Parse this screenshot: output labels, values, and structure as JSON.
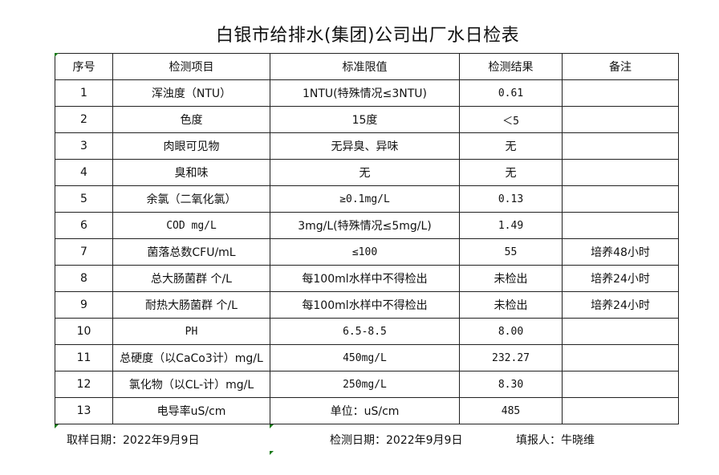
{
  "title": "白银市给排水(集团)公司出厂水日检表",
  "headers": [
    "序号",
    "检测项目",
    "标准限值",
    "检测结果",
    "备注"
  ],
  "rows": [
    [
      "1",
      "浑浊度（NTU）",
      "1NTU(特殊情况≤3NTU)",
      "0.61",
      ""
    ],
    [
      "2",
      "色度",
      "15度",
      "＜5",
      ""
    ],
    [
      "3",
      "肉眼可见物",
      "无异臭、异味",
      "无",
      ""
    ],
    [
      "4",
      "臭和味",
      "无",
      "无",
      ""
    ],
    [
      "5",
      "余氯（二氧化氯）",
      "≥0.1mg/L",
      "0.13",
      ""
    ],
    [
      "6",
      "COD        mg/L",
      "3mg/L(特殊情况≤5mg/L)",
      "1.49",
      ""
    ],
    [
      "7",
      "菌落总数CFU/mL",
      "≤100",
      "55",
      "培养48小时"
    ],
    [
      "8",
      "总大肠菌群 个/L",
      "每100ml水样中不得检出",
      "未检出",
      "培养24小时"
    ],
    [
      "9",
      "耐热大肠菌群 个/L",
      "每100ml水样中不得检出",
      "未检出",
      "培养24小时"
    ],
    [
      "10",
      "PH",
      "6.5-8.5",
      "8.00",
      ""
    ],
    [
      "11",
      "总硬度（以CaCo3计）mg/L",
      "450mg/L",
      "232.27",
      ""
    ],
    [
      "12",
      "氯化物（以CL-计）mg/L",
      "250mg/L",
      "8.30",
      ""
    ],
    [
      "13",
      "电导率uS/cm",
      "单位：uS/cm",
      "485",
      ""
    ]
  ],
  "footer": {
    "sampling_date": "取样日期：2022年9月9日",
    "test_date": "检测日期：2022年9月9日",
    "reporter": "填报人：牛晓维"
  },
  "colors": {
    "border": "#222222",
    "cell_marker": "#1a7a1a"
  }
}
